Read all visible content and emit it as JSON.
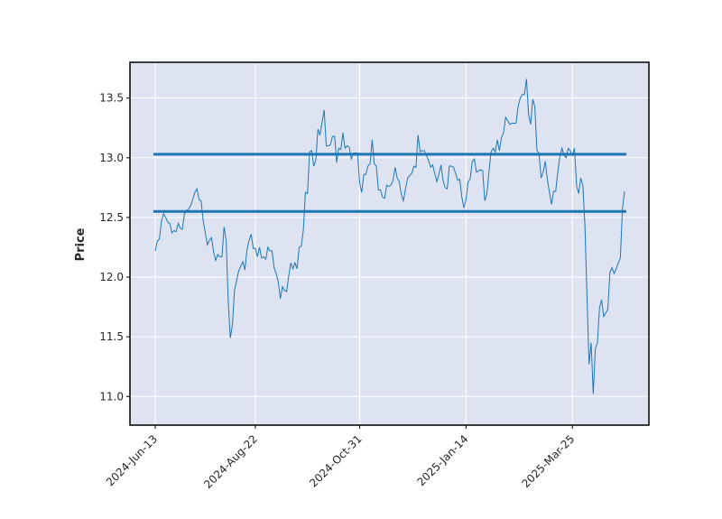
{
  "chart_data": {
    "type": "line",
    "title": "",
    "xlabel": "",
    "ylabel": "Price",
    "ylim": [
      10.76,
      13.8
    ],
    "grid": true,
    "x_ticks": [
      "2024-Jun-13",
      "2024-Aug-22",
      "2024-Oct-31",
      "2025-Jan-14",
      "2025-Mar-25"
    ],
    "y_ticks": [
      "11.0",
      "11.5",
      "12.0",
      "12.5",
      "13.0",
      "13.5"
    ],
    "colors": {
      "background": "#dde3f0",
      "grid": "#ffffff",
      "series": "#1f77b4"
    },
    "horizontal_lines": [
      13.03,
      12.55
    ],
    "series": [
      {
        "values": [
          12.22,
          12.3,
          12.32,
          12.47,
          12.53,
          12.5,
          12.46,
          12.45,
          12.37,
          12.39,
          12.38,
          12.45,
          12.41,
          12.4,
          12.53,
          12.56,
          12.57,
          12.6,
          12.65,
          12.71,
          12.74,
          12.65,
          12.64,
          12.47,
          12.37,
          12.27,
          12.31,
          12.33,
          12.21,
          12.14,
          12.19,
          12.17,
          12.17,
          12.42,
          12.31,
          11.8,
          11.49,
          11.6,
          11.89,
          11.97,
          12.05,
          12.09,
          12.13,
          12.06,
          12.23,
          12.31,
          12.36,
          12.24,
          12.24,
          12.17,
          12.25,
          12.16,
          12.17,
          12.15,
          12.25,
          12.22,
          12.22,
          12.08,
          12.03,
          11.96,
          11.82,
          11.92,
          11.89,
          11.88,
          12.01,
          12.12,
          12.07,
          12.12,
          12.07,
          12.25,
          12.26,
          12.39,
          12.71,
          12.7,
          13.05,
          13.06,
          12.93,
          12.98,
          13.24,
          13.19,
          13.3,
          13.4,
          13.1,
          13.1,
          13.11,
          13.18,
          13.18,
          12.96,
          13.08,
          13.07,
          13.21,
          13.08,
          13.1,
          13.09,
          12.99,
          13.04,
          13.04,
          13.04,
          12.79,
          12.71,
          12.86,
          12.86,
          12.93,
          12.95,
          13.15,
          12.95,
          12.93,
          12.73,
          12.73,
          12.67,
          12.66,
          12.77,
          12.76,
          12.77,
          12.81,
          12.92,
          12.83,
          12.8,
          12.69,
          12.64,
          12.74,
          12.83,
          12.85,
          12.87,
          12.93,
          12.92,
          13.19,
          13.05,
          13.06,
          13.06,
          13.02,
          12.98,
          12.92,
          12.94,
          12.87,
          12.8,
          12.86,
          12.94,
          12.81,
          12.75,
          12.74,
          12.93,
          12.93,
          12.92,
          12.87,
          12.81,
          12.82,
          12.67,
          12.58,
          12.65,
          12.8,
          12.82,
          12.97,
          12.99,
          12.88,
          12.89,
          12.9,
          12.89,
          12.64,
          12.7,
          12.88,
          13.05,
          13.08,
          13.05,
          13.15,
          13.06,
          13.17,
          13.21,
          13.34,
          13.31,
          13.28,
          13.29,
          13.29,
          13.29,
          13.43,
          13.5,
          13.53,
          13.53,
          13.66,
          13.36,
          13.28,
          13.49,
          13.43,
          13.06,
          13.04,
          12.83,
          12.88,
          12.97,
          12.82,
          12.71,
          12.61,
          12.72,
          12.72,
          12.88,
          13.01,
          13.08,
          13.02,
          13.0,
          13.08,
          13.06,
          13.02,
          13.08,
          12.77,
          12.7,
          12.83,
          12.77,
          12.44,
          11.84,
          11.27,
          11.45,
          11.02,
          11.4,
          11.45,
          11.74,
          11.81,
          11.67,
          11.7,
          11.73,
          12.04,
          12.08,
          12.03,
          12.07,
          12.12,
          12.16,
          12.57,
          12.72
        ]
      }
    ]
  }
}
